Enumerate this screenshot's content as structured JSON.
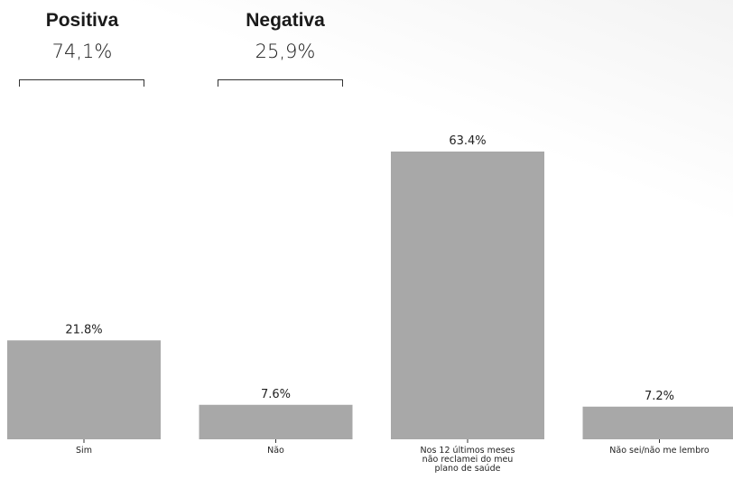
{
  "groups": {
    "positive": {
      "title": "Positiva",
      "value": "74,1%"
    },
    "negative": {
      "title": "Negativa",
      "value": "25,9%"
    }
  },
  "chart_data": {
    "type": "bar",
    "categories": [
      "Sim",
      "Não",
      "Nos 12 últimos meses não reclamei do meu plano de saúde",
      "Não sei/não me lembro"
    ],
    "category_lines": [
      [
        "Sim"
      ],
      [
        "Não"
      ],
      [
        "Nos 12 últimos meses",
        "não reclamei do meu",
        "plano de saúde"
      ],
      [
        "Não sei/não me lembro"
      ]
    ],
    "values": [
      21.8,
      7.6,
      63.4,
      7.2
    ],
    "data_labels": [
      "21.8%",
      "7.6%",
      "63.4%",
      "7.2%"
    ],
    "ylim": [
      0,
      63.4
    ],
    "bar_color": "#a8a8a8",
    "grid": false
  }
}
